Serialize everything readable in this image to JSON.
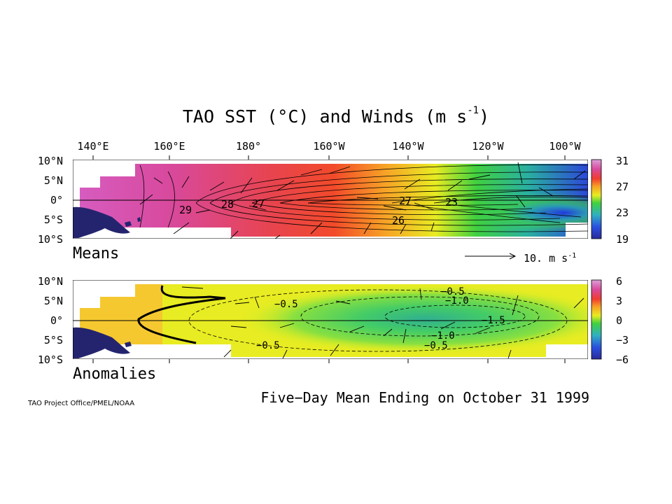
{
  "title": {
    "prefix": "TAO SST (°C) and Winds (m s",
    "sup": "-1",
    "suffix": ")"
  },
  "longitude_labels": [
    "140°E",
    "160°E",
    "180°",
    "160°W",
    "140°W",
    "120°W",
    "100°W"
  ],
  "latitude_labels": [
    "10°N",
    "5°N",
    "0°",
    "5°S",
    "10°S"
  ],
  "panels": {
    "means": {
      "label": "Means",
      "colorbar_ticks": [
        "31",
        "27",
        "23",
        "19"
      ],
      "contour_labels": [
        "29",
        "28",
        "27",
        "27",
        "26",
        "23"
      ]
    },
    "anomalies": {
      "label": "Anomalies",
      "colorbar_ticks": [
        "6",
        "3",
        "0",
        "−3",
        "−6"
      ],
      "contour_labels": [
        "−0.5",
        "−0.5",
        "−0.5",
        "−0.5",
        "−1.0",
        "−1.0",
        "−1.5"
      ]
    }
  },
  "reference_vector": {
    "label": "10.  m s",
    "sup": "-1"
  },
  "footer": "Five−Day Mean Ending on October 31 1999",
  "credit": "TAO Project Office/PMEL/NOAA",
  "colors": {
    "warm": "#d44db0",
    "red": "#f03c3c",
    "orange": "#f5a020",
    "yellow": "#f0f020",
    "green": "#3ce03c",
    "blue": "#2840e0",
    "land": "#24246e"
  },
  "chart_data": [
    {
      "type": "heatmap",
      "title": "TAO SST (°C) and Winds (m s-1)",
      "panel": "Means",
      "x_ticks": [
        "140°E",
        "160°E",
        "180°",
        "160°W",
        "140°W",
        "120°W",
        "100°W"
      ],
      "y_ticks": [
        "10°N",
        "5°N",
        "0°",
        "5°S",
        "10°S"
      ],
      "xlim_deg_east": [
        130,
        265
      ],
      "ylim_deg": [
        -10,
        10
      ],
      "colorbar": {
        "ticks": [
          31,
          27,
          23,
          19
        ],
        "range": [
          19,
          31
        ],
        "unit": "°C"
      },
      "contour_levels": [
        29,
        28,
        27,
        26,
        23
      ],
      "reference_vector_ms": 10
    },
    {
      "type": "heatmap",
      "panel": "Anomalies",
      "x_ticks": [
        "140°E",
        "160°E",
        "180°",
        "160°W",
        "140°W",
        "120°W",
        "100°W"
      ],
      "y_ticks": [
        "10°N",
        "5°N",
        "0°",
        "5°S",
        "10°S"
      ],
      "xlim_deg_east": [
        130,
        265
      ],
      "ylim_deg": [
        -10,
        10
      ],
      "colorbar": {
        "ticks": [
          6,
          3,
          0,
          -3,
          -6
        ],
        "range": [
          -6,
          6
        ],
        "unit": "°C"
      },
      "contour_levels": [
        -0.5,
        -1.0,
        -1.5
      ]
    }
  ]
}
